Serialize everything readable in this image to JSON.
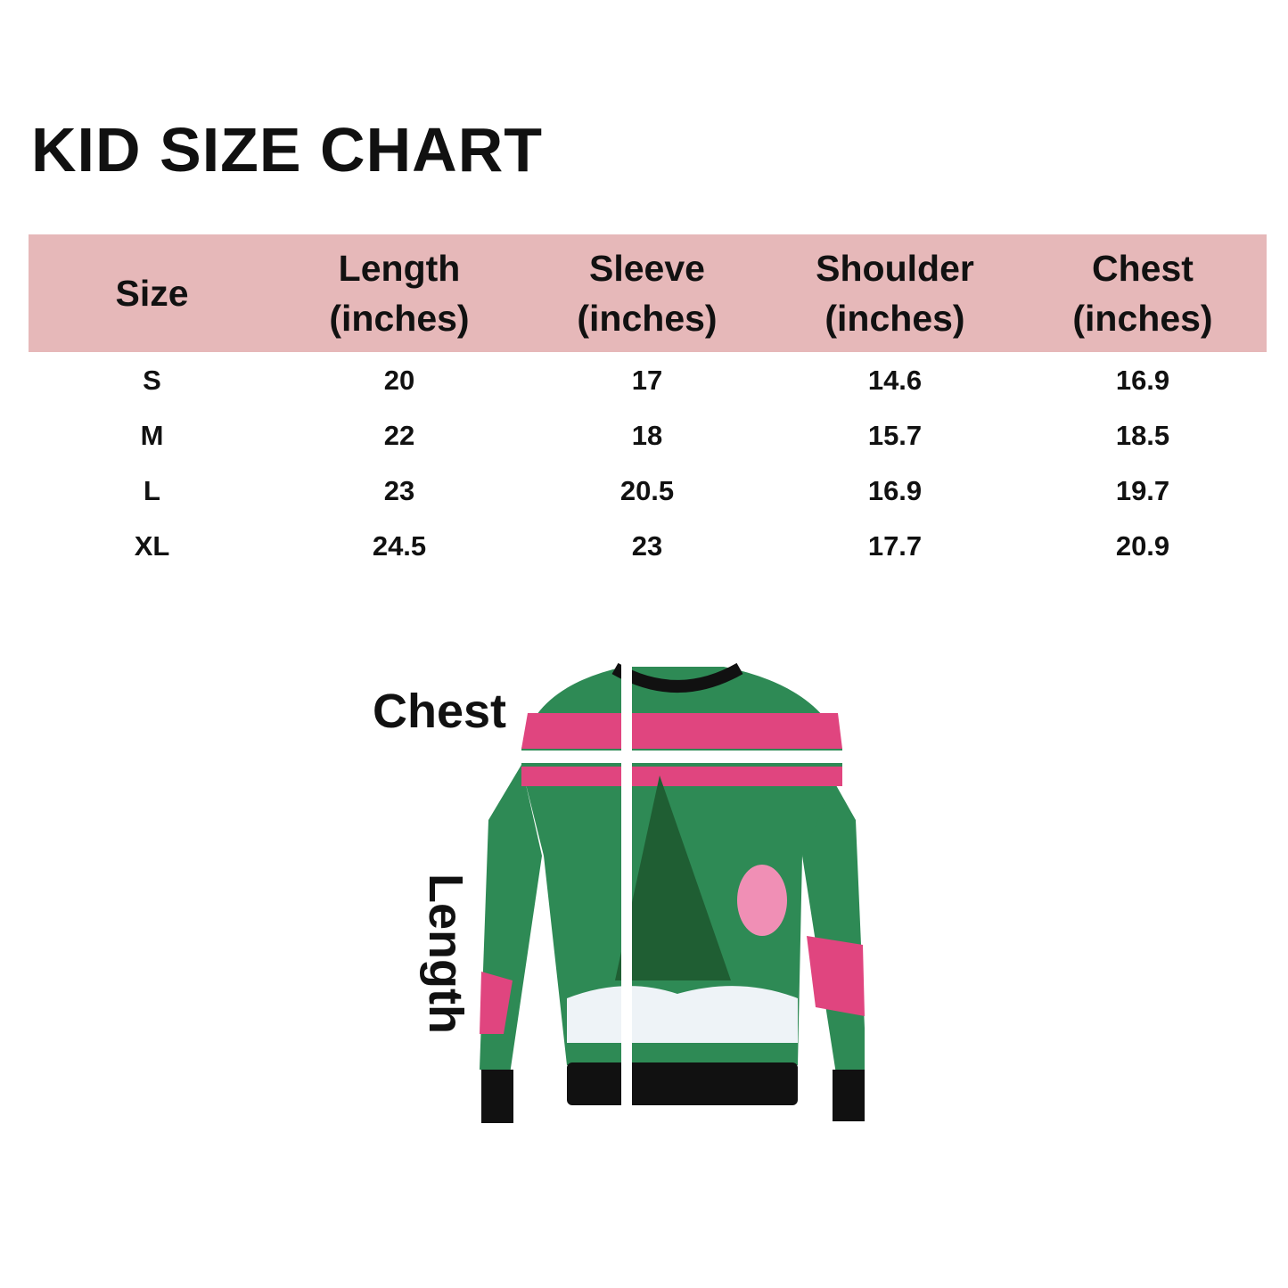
{
  "title": "KID SIZE CHART",
  "table": {
    "columns": [
      {
        "line1": "Size",
        "line2": ""
      },
      {
        "line1": "Length",
        "line2": "(inches)"
      },
      {
        "line1": "Sleeve",
        "line2": "(inches)"
      },
      {
        "line1": "Shoulder",
        "line2": "(inches)"
      },
      {
        "line1": "Chest",
        "line2": "(inches)"
      }
    ],
    "rows": [
      [
        "S",
        "20",
        "17",
        "14.6",
        "16.9"
      ],
      [
        "M",
        "22",
        "18",
        "15.7",
        "18.5"
      ],
      [
        "L",
        "23",
        "20.5",
        "16.9",
        "19.7"
      ],
      [
        "XL",
        "24.5",
        "23",
        "17.7",
        "20.9"
      ]
    ],
    "header_color": "#e6b8b9"
  },
  "diagram": {
    "chest_label": "Chest",
    "length_label": "Length",
    "colors": {
      "green": "#2e8a55",
      "pink": "#e0457f",
      "black": "#111111"
    }
  }
}
